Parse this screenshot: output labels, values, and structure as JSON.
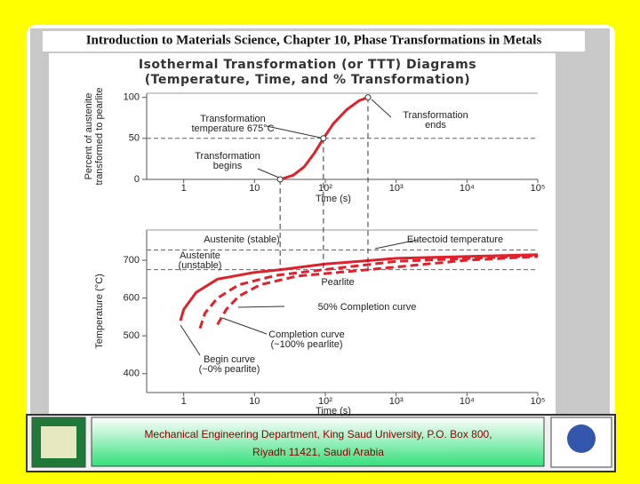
{
  "slide": {
    "header": "Introduction to Materials Science, Chapter 10, Phase Transformations in Metals",
    "figure_title": [
      "Isothermal Transformation (or TTT) Diagrams",
      "(Temperature, Time, and % Transformation)"
    ],
    "footer": [
      "Mechanical Engineering Department, King Saud University, P.O. Box 800,",
      "Riyadh 11421, Saudi Arabia"
    ]
  },
  "chart_data": [
    {
      "type": "line",
      "log_x": true,
      "xlabel": "Time (s)",
      "ylabel": [
        "Percent of austenite",
        "transformed to pearlite"
      ],
      "xlim": [
        0.3,
        100000
      ],
      "ylim": [
        0,
        105
      ],
      "xticks": [
        1,
        10,
        {
          "value": 100,
          "label": "10²"
        },
        {
          "value": 1000,
          "label": "10³"
        },
        {
          "value": 10000,
          "label": "10⁴"
        },
        {
          "value": 100000,
          "label": "10⁵"
        }
      ],
      "yticks": [
        0,
        50,
        100
      ],
      "hlines": [
        50
      ],
      "series": [
        {
          "color": "#e0202a",
          "dash": false,
          "x": [
            23,
            35,
            50,
            70,
            94,
            130,
            200,
            300,
            400
          ],
          "values": [
            0,
            5,
            15,
            32,
            50,
            68,
            85,
            96,
            100
          ]
        }
      ],
      "annotations": [
        {
          "lines": [
            "Transformation",
            "temperature 675°C"
          ]
        },
        {
          "lines": [
            "Transformation",
            "ends"
          ]
        },
        {
          "lines": [
            "Transformation",
            "begins"
          ]
        }
      ]
    },
    {
      "type": "line",
      "log_x": true,
      "xlabel": "Time (s)",
      "ylabel": [
        "Temperature (°C)"
      ],
      "xlim": [
        0.3,
        100000
      ],
      "ylim": [
        350,
        780
      ],
      "xticks": [
        1,
        10,
        {
          "value": 100,
          "label": "10²"
        },
        {
          "value": 1000,
          "label": "10³"
        },
        {
          "value": 10000,
          "label": "10⁴"
        },
        {
          "value": 100000,
          "label": "10⁵"
        }
      ],
      "yticks": [
        400,
        500,
        600,
        700
      ],
      "hlines": [
        727,
        675
      ],
      "series": [
        {
          "color": "#e0202a",
          "dash": false,
          "x": [
            0.9,
            1,
            1.5,
            3,
            10,
            23,
            100,
            1000,
            100000
          ],
          "values": [
            540,
            570,
            615,
            650,
            668,
            675,
            690,
            705,
            715
          ]
        },
        {
          "color": "#e0202a",
          "dash": true,
          "x": [
            1.7,
            2,
            3,
            6,
            20,
            94,
            1000,
            100000
          ],
          "values": [
            520,
            560,
            600,
            635,
            660,
            675,
            697,
            712
          ]
        },
        {
          "color": "#e0202a",
          "dash": true,
          "x": [
            3,
            4,
            6,
            12,
            40,
            400,
            10000,
            100000
          ],
          "values": [
            530,
            570,
            605,
            635,
            658,
            675,
            700,
            710
          ]
        }
      ],
      "annotations": [
        {
          "lines": [
            "Austenite (stable)"
          ]
        },
        {
          "lines": [
            "Eutectoid temperature"
          ]
        },
        {
          "lines": [
            "Austenite",
            "(unstable)"
          ]
        },
        {
          "lines": [
            "Pearlite"
          ]
        },
        {
          "lines": [
            "50% Completion curve"
          ]
        },
        {
          "lines": [
            "Completion curve",
            "(~100% pearlite)"
          ]
        },
        {
          "lines": [
            "Begin curve",
            "(~0% pearlite)"
          ]
        }
      ]
    }
  ]
}
